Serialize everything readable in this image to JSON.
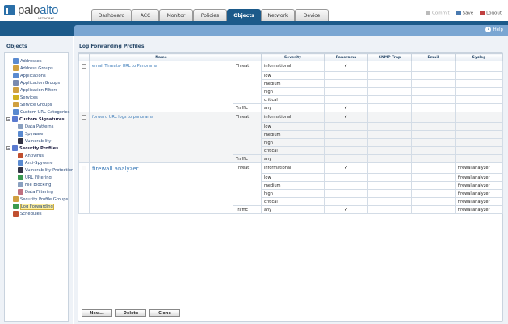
{
  "brand": {
    "name_a": "palo",
    "name_b": "alto",
    "sub": "NETWORKS"
  },
  "tabs": [
    {
      "label": "Dashboard",
      "w": 50
    },
    {
      "label": "ACC",
      "w": 34
    },
    {
      "label": "Monitor",
      "w": 42
    },
    {
      "label": "Policies",
      "w": 42
    },
    {
      "label": "Objects",
      "w": 42,
      "active": true
    },
    {
      "label": "Network",
      "w": 42
    },
    {
      "label": "Device",
      "w": 42
    }
  ],
  "top_actions": {
    "commit": "Commit",
    "save": "Save",
    "logout": "Logout"
  },
  "help": "Help",
  "left": {
    "title": "Objects",
    "items": [
      {
        "label": "Addresses",
        "lvl": 1,
        "icon": "address-icon",
        "color": "#5a8ad0"
      },
      {
        "label": "Address Groups",
        "lvl": 1,
        "icon": "address-group-icon",
        "color": "#d0a040"
      },
      {
        "label": "Applications",
        "lvl": 1,
        "icon": "application-icon",
        "color": "#5a8ad0"
      },
      {
        "label": "Application Groups",
        "lvl": 1,
        "icon": "application-group-icon",
        "color": "#7a8ab0"
      },
      {
        "label": "Application Filters",
        "lvl": 1,
        "icon": "filter-icon",
        "color": "#d0a040"
      },
      {
        "label": "Services",
        "lvl": 1,
        "icon": "services-icon",
        "color": "#d0b020"
      },
      {
        "label": "Service Groups",
        "lvl": 1,
        "icon": "service-group-icon",
        "color": "#d0a040"
      },
      {
        "label": "Custom URL Categories",
        "lvl": 1,
        "icon": "url-category-icon",
        "color": "#5a8ad0"
      },
      {
        "label": "Custom Signatures",
        "lvl": 0,
        "icon": "signature-icon",
        "color": "#5a7ad0",
        "bold": true
      },
      {
        "label": "Data Patterns",
        "lvl": 2,
        "icon": "data-pattern-icon",
        "color": "#8aa0c0"
      },
      {
        "label": "Spyware",
        "lvl": 2,
        "icon": "spyware-icon",
        "color": "#5a8ad0"
      },
      {
        "label": "Vulnerability",
        "lvl": 2,
        "icon": "vulnerability-icon",
        "color": "#334"
      },
      {
        "label": "Security Profiles",
        "lvl": 0,
        "icon": "security-profile-icon",
        "color": "#5a7ad0",
        "bold": true
      },
      {
        "label": "Antivirus",
        "lvl": 2,
        "icon": "antivirus-icon",
        "color": "#c05030"
      },
      {
        "label": "Anti-Spyware",
        "lvl": 2,
        "icon": "anti-spyware-icon",
        "color": "#5a8ad0"
      },
      {
        "label": "Vulnerability Protection",
        "lvl": 2,
        "icon": "vulnerability-protection-icon",
        "color": "#334"
      },
      {
        "label": "URL Filtering",
        "lvl": 2,
        "icon": "url-filtering-icon",
        "color": "#3a9a50"
      },
      {
        "label": "File Blocking",
        "lvl": 2,
        "icon": "file-blocking-icon",
        "color": "#8aa0c0"
      },
      {
        "label": "Data Filtering",
        "lvl": 2,
        "icon": "data-filtering-icon",
        "color": "#c07080"
      },
      {
        "label": "Security Profile Groups",
        "lvl": 1,
        "icon": "profile-group-icon",
        "color": "#d0a040"
      },
      {
        "label": "Log Forwarding",
        "lvl": 1,
        "icon": "log-forwarding-icon",
        "color": "#3a9a50",
        "selected": true
      },
      {
        "label": "Schedules",
        "lvl": 1,
        "icon": "schedule-icon",
        "color": "#c05030"
      }
    ]
  },
  "main": {
    "title": "Log Forwarding Profiles",
    "columns": [
      "Name",
      "",
      "Severity",
      "Panorama",
      "SNMP Trap",
      "Email",
      "Syslog"
    ],
    "profiles": [
      {
        "name": "email Threats- URL to Panorama",
        "rows": [
          {
            "type": "Threat",
            "severity": "informational",
            "panorama": "✔",
            "snmp": "",
            "email": "",
            "syslog": ""
          },
          {
            "type": "",
            "severity": "low",
            "panorama": "",
            "snmp": "",
            "email": "",
            "syslog": ""
          },
          {
            "type": "",
            "severity": "medium",
            "panorama": "",
            "snmp": "",
            "email": "",
            "syslog": ""
          },
          {
            "type": "",
            "severity": "high",
            "panorama": "",
            "snmp": "",
            "email": "",
            "syslog": ""
          },
          {
            "type": "",
            "severity": "critical",
            "panorama": "",
            "snmp": "",
            "email": "",
            "syslog": ""
          },
          {
            "type": "Traffic",
            "severity": "any",
            "panorama": "✔",
            "snmp": "",
            "email": "",
            "syslog": ""
          }
        ]
      },
      {
        "name": "forward URL logs to panorama",
        "rows": [
          {
            "type": "Threat",
            "severity": "informational",
            "panorama": "✔",
            "snmp": "",
            "email": "",
            "syslog": ""
          },
          {
            "type": "",
            "severity": "low",
            "panorama": "",
            "snmp": "",
            "email": "",
            "syslog": ""
          },
          {
            "type": "",
            "severity": "medium",
            "panorama": "",
            "snmp": "",
            "email": "",
            "syslog": ""
          },
          {
            "type": "",
            "severity": "high",
            "panorama": "",
            "snmp": "",
            "email": "",
            "syslog": ""
          },
          {
            "type": "",
            "severity": "critical",
            "panorama": "",
            "snmp": "",
            "email": "",
            "syslog": ""
          },
          {
            "type": "Traffic",
            "severity": "any",
            "panorama": "",
            "snmp": "",
            "email": "",
            "syslog": ""
          }
        ]
      },
      {
        "name": "firewall analyzer",
        "big": true,
        "rows": [
          {
            "type": "Threat",
            "severity": "informational",
            "panorama": "✔",
            "snmp": "",
            "email": "",
            "syslog": "firewallanalyzer"
          },
          {
            "type": "",
            "severity": "low",
            "panorama": "",
            "snmp": "",
            "email": "",
            "syslog": "firewallanalyzer"
          },
          {
            "type": "",
            "severity": "medium",
            "panorama": "",
            "snmp": "",
            "email": "",
            "syslog": "firewallanalyzer"
          },
          {
            "type": "",
            "severity": "high",
            "panorama": "",
            "snmp": "",
            "email": "",
            "syslog": "firewallanalyzer"
          },
          {
            "type": "",
            "severity": "critical",
            "panorama": "",
            "snmp": "",
            "email": "",
            "syslog": "firewallanalyzer"
          },
          {
            "type": "Traffic",
            "severity": "any",
            "panorama": "✔",
            "snmp": "",
            "email": "",
            "syslog": "firewallanalyzer"
          }
        ]
      }
    ],
    "buttons": {
      "new": "New...",
      "delete": "Delete",
      "clone": "Clone"
    }
  }
}
